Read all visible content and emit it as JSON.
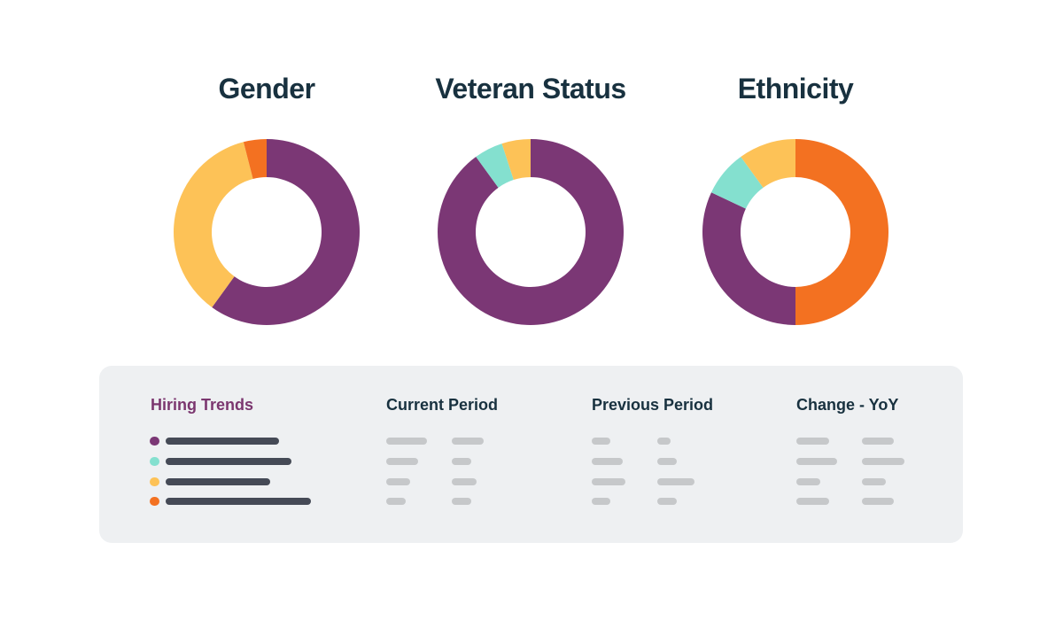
{
  "colors": {
    "purple": "#7b3775",
    "teal": "#84e0cf",
    "yellow": "#fdc257",
    "orange": "#f37121"
  },
  "chart_data": [
    {
      "type": "pie",
      "variant": "donut",
      "title": "Gender",
      "slices": [
        {
          "value": 60,
          "color": "#7b3775"
        },
        {
          "value": 36,
          "color": "#fdc257"
        },
        {
          "value": 4,
          "color": "#f37121"
        }
      ]
    },
    {
      "type": "pie",
      "variant": "donut",
      "title": "Veteran Status",
      "slices": [
        {
          "value": 90,
          "color": "#7b3775"
        },
        {
          "value": 5,
          "color": "#84e0cf"
        },
        {
          "value": 5,
          "color": "#fdc257"
        }
      ]
    },
    {
      "type": "pie",
      "variant": "donut",
      "title": "Ethnicity",
      "slices": [
        {
          "value": 50,
          "color": "#f37121"
        },
        {
          "value": 32,
          "color": "#7b3775"
        },
        {
          "value": 8,
          "color": "#84e0cf"
        },
        {
          "value": 10,
          "color": "#fdc257"
        }
      ]
    }
  ],
  "table": {
    "headers": [
      "Hiring Trends",
      "Current Period",
      "Previous Period",
      "Change - YoY"
    ],
    "legend_colors": [
      "#7b3775",
      "#84e0cf",
      "#fdc257",
      "#f37121"
    ]
  }
}
